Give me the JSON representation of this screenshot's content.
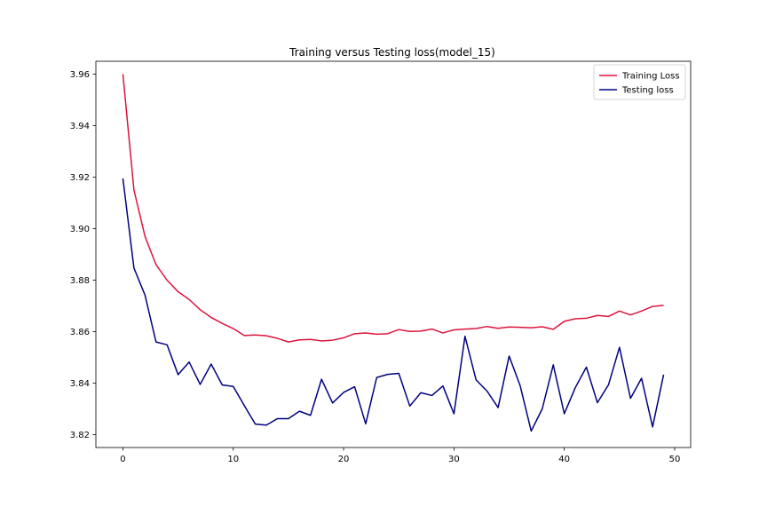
{
  "chart_data": {
    "type": "line",
    "title": "Training versus Testing loss(model_15)",
    "xlabel": "",
    "ylabel": "",
    "xlim": [
      -2.45,
      51.45
    ],
    "ylim": [
      3.815,
      3.965
    ],
    "xticks": [
      0,
      10,
      20,
      30,
      40,
      50
    ],
    "yticks": [
      3.82,
      3.84,
      3.86,
      3.88,
      3.9,
      3.92,
      3.94,
      3.96
    ],
    "ytick_labels": [
      "3.82",
      "3.84",
      "3.86",
      "3.88",
      "3.90",
      "3.92",
      "3.94",
      "3.96"
    ],
    "grid": false,
    "legend_position": "top-right",
    "x": [
      0,
      1,
      2,
      3,
      4,
      5,
      6,
      7,
      8,
      9,
      10,
      11,
      12,
      13,
      14,
      15,
      16,
      17,
      18,
      19,
      20,
      21,
      22,
      23,
      24,
      25,
      26,
      27,
      28,
      29,
      30,
      31,
      32,
      33,
      34,
      35,
      36,
      37,
      38,
      39,
      40,
      41,
      42,
      43,
      44,
      45,
      46,
      47,
      48,
      49
    ],
    "series": [
      {
        "name": "Training Loss",
        "color": "#dc143c",
        "values": [
          3.96,
          3.915,
          3.897,
          3.886,
          3.88,
          3.8755,
          3.8725,
          3.8685,
          3.8655,
          3.8632,
          3.8612,
          3.8585,
          3.8587,
          3.8584,
          3.8574,
          3.856,
          3.8568,
          3.857,
          3.8564,
          3.8567,
          3.8576,
          3.8592,
          3.8595,
          3.859,
          3.8592,
          3.8608,
          3.8601,
          3.8602,
          3.861,
          3.8595,
          3.8607,
          3.861,
          3.8612,
          3.862,
          3.8613,
          3.8618,
          3.8617,
          3.8615,
          3.8619,
          3.8609,
          3.864,
          3.865,
          3.8652,
          3.8663,
          3.8659,
          3.868,
          3.8665,
          3.868,
          3.8698,
          3.8702
        ]
      },
      {
        "name": "Testing loss",
        "color": "#000080",
        "values": [
          3.9195,
          3.8847,
          3.8742,
          3.856,
          3.8549,
          3.8433,
          3.8482,
          3.8395,
          3.8474,
          3.8393,
          3.8387,
          3.8313,
          3.8241,
          3.8237,
          3.8262,
          3.8262,
          3.8291,
          3.8275,
          3.8415,
          3.8323,
          3.8364,
          3.8386,
          3.8242,
          3.8422,
          3.8434,
          3.8438,
          3.8311,
          3.8363,
          3.8352,
          3.8389,
          3.8281,
          3.8582,
          3.8413,
          3.8369,
          3.8305,
          3.8505,
          3.839,
          3.8214,
          3.83,
          3.8471,
          3.8281,
          3.8383,
          3.8462,
          3.8324,
          3.8393,
          3.8539,
          3.8341,
          3.8419,
          3.823,
          3.8433
        ]
      }
    ]
  }
}
